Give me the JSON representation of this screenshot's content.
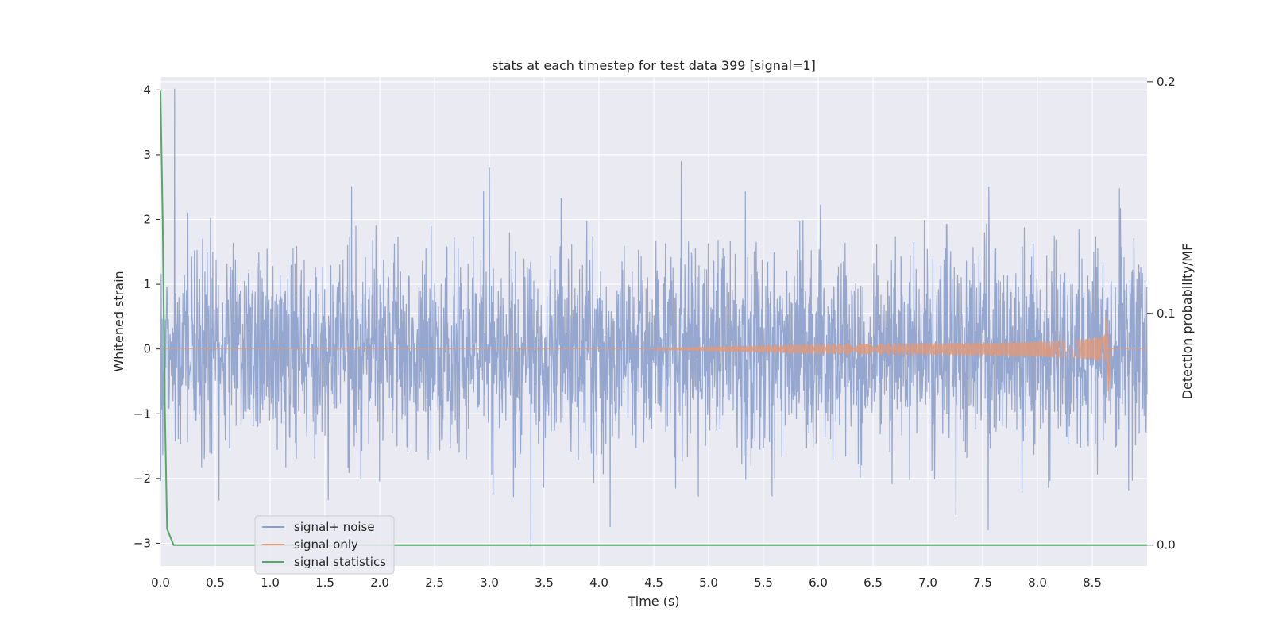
{
  "chart_data": {
    "type": "line",
    "title": "stats at each timestep for test data 399 [signal=1]",
    "xlabel": "Time (s)",
    "ylabel": "Whitened strain",
    "y2label": "Detection probability/MF",
    "xlim": [
      0.0,
      9.0
    ],
    "ylim": [
      -3.35,
      4.2
    ],
    "y2lim": [
      -0.009,
      0.202
    ],
    "x_ticks": [
      0.0,
      0.5,
      1.0,
      1.5,
      2.0,
      2.5,
      3.0,
      3.5,
      4.0,
      4.5,
      5.0,
      5.5,
      6.0,
      6.5,
      7.0,
      7.5,
      8.0,
      8.5
    ],
    "x_tick_labels": [
      "0.0",
      "0.5",
      "1.0",
      "1.5",
      "2.0",
      "2.5",
      "3.0",
      "3.5",
      "4.0",
      "4.5",
      "5.0",
      "5.5",
      "6.0",
      "6.5",
      "7.0",
      "7.5",
      "8.0",
      "8.5"
    ],
    "y_ticks": [
      -3,
      -2,
      -1,
      0,
      1,
      2,
      3,
      4
    ],
    "y_tick_labels": [
      "−3",
      "−2",
      "−1",
      "0",
      "1",
      "2",
      "3",
      "4"
    ],
    "y2_ticks": [
      0.0,
      0.1,
      0.2
    ],
    "y2_tick_labels": [
      "0.0",
      "0.1",
      "0.2"
    ],
    "legend_position": "lower-left",
    "grid": true,
    "series": [
      {
        "name": "signal+ noise",
        "color": "#8da0cb",
        "axis": "left",
        "description_range": [
          -3.05,
          4.02
        ],
        "peaks": [
          {
            "x": 0.13,
            "y": 4.02
          },
          {
            "x": 3.38,
            "y": -3.05
          },
          {
            "x": 3.0,
            "y": 2.8
          },
          {
            "x": 4.75,
            "y": 2.9
          },
          {
            "x": 7.55,
            "y": -2.8
          }
        ]
      },
      {
        "name": "signal only",
        "color": "#dd9a7e",
        "axis": "left",
        "chirp_start": 4.5,
        "merger_time": 8.64,
        "peak_amplitude": 0.5,
        "trough_amplitude": -0.65
      },
      {
        "name": "signal statistics",
        "color": "#55a868",
        "axis": "right",
        "x": [
          0.0,
          0.02,
          0.04,
          0.06,
          0.12,
          9.0
        ],
        "values": [
          0.196,
          0.14,
          0.06,
          0.007,
          0.0,
          0.0
        ]
      }
    ]
  }
}
